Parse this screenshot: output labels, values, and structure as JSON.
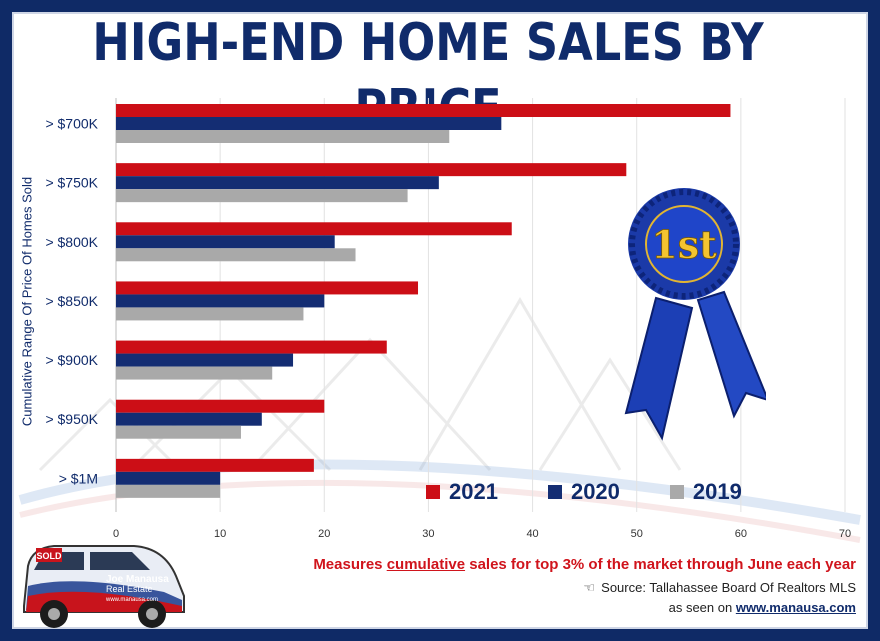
{
  "title": "HIGH-END HOME SALES BY PRICE",
  "y_axis_label": "Cumulative Range Of Price Of Homes Sold",
  "note": {
    "before": "Measures ",
    "emphasis": "cumulative",
    "after": " sales for top 3% of the market through June each year"
  },
  "source": "Source: Tallahassee Board Of Realtors MLS",
  "seen_on": {
    "prefix": "as seen on ",
    "url": "www.manausa.com"
  },
  "ribbon_text": "1st",
  "car": {
    "brand_line1": "Joe Manausa",
    "brand_line2": "Real Estate",
    "url": "www.manausa.com",
    "sign": "SOLD"
  },
  "colors": {
    "2021": "#cc0e16",
    "2020": "#142d73",
    "2019": "#a9a9a9",
    "title": "#102b6b",
    "frame": "#0f2a66"
  },
  "chart_data": {
    "type": "bar",
    "orientation": "horizontal",
    "categories": [
      "> $700K",
      "> $750K",
      "> $800K",
      "> $850K",
      "> $900K",
      "> $950K",
      "> $1M"
    ],
    "series": [
      {
        "name": "2021",
        "values": [
          59,
          49,
          38,
          29,
          26,
          20,
          19
        ]
      },
      {
        "name": "2020",
        "values": [
          37,
          31,
          21,
          20,
          17,
          14,
          10
        ]
      },
      {
        "name": "2019",
        "values": [
          32,
          28,
          23,
          18,
          15,
          12,
          10
        ]
      }
    ],
    "xlabel": "",
    "ylabel": "Cumulative Range Of Price Of Homes Sold",
    "xlim": [
      0,
      70
    ],
    "xticks": [
      0,
      10,
      20,
      30,
      40,
      50,
      60,
      70
    ],
    "grid": true,
    "legend_position": "bottom-right"
  }
}
